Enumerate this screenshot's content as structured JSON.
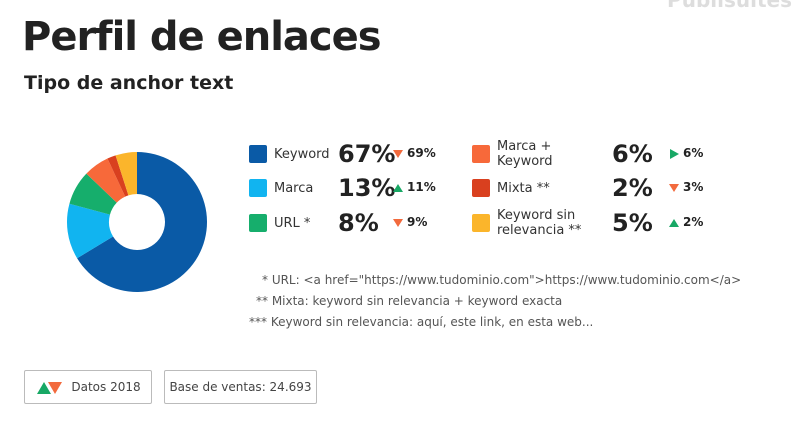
{
  "brand": "Publisuites",
  "chart_data": {
    "type": "pie",
    "donut": true,
    "title": "Perfil de enlaces",
    "subtitle": "Tipo de anchor text",
    "categories": [
      "Keyword",
      "Marca",
      "URL *",
      "Marca + Keyword",
      "Mixta **",
      "Keyword sin relevancia **"
    ],
    "values": [
      67,
      13,
      8,
      6,
      2,
      5
    ],
    "value_labels": [
      "67%",
      "13%",
      "8%",
      "6%",
      "2%",
      "5%"
    ],
    "colors": [
      "#0a5aa6",
      "#11b4f0",
      "#16ae6c",
      "#f7693a",
      "#d9401f",
      "#fbb52b"
    ],
    "comparison": {
      "values": [
        69,
        11,
        9,
        6,
        3,
        2
      ],
      "value_labels": [
        "69%",
        "11%",
        "9%",
        "6%",
        "3%",
        "2%"
      ],
      "trend": [
        "down",
        "up",
        "down",
        "flat",
        "down",
        "up"
      ]
    },
    "notes": [
      "* URL: <a href=\"https://www.tudominio.com\">https://www.tudominio.com</a>",
      "** Mixta: keyword sin relevancia + keyword exacta",
      "*** Keyword sin relevancia: aquí, este link, en esta web..."
    ]
  },
  "footer": {
    "period": "Datos 2018",
    "base": "Base de ventas: 24.693"
  }
}
